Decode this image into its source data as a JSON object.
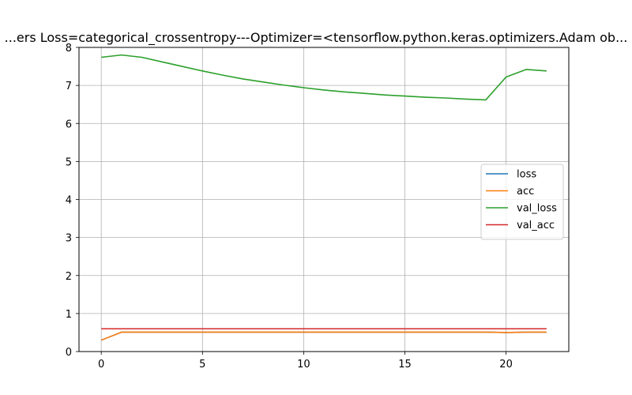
{
  "chart_data": {
    "type": "line",
    "title": "...ers  Loss=categorical_crossentropy---Optimizer=<tensorflow.python.keras.optimizers.Adam ob...",
    "xlabel": "",
    "ylabel": "",
    "xlim": [
      -1.1,
      23.1
    ],
    "ylim": [
      0,
      8
    ],
    "xticks": [
      0,
      5,
      10,
      15,
      20
    ],
    "yticks": [
      0,
      1,
      2,
      3,
      4,
      5,
      6,
      7,
      8
    ],
    "grid": true,
    "legend_position": "center-right",
    "x": [
      0,
      1,
      2,
      3,
      4,
      5,
      6,
      7,
      8,
      9,
      10,
      11,
      12,
      13,
      14,
      15,
      16,
      17,
      18,
      19,
      20,
      21,
      22
    ],
    "series": [
      {
        "name": "loss",
        "color": "#1f77b4",
        "values": [
          0.3,
          0.51,
          0.51,
          0.51,
          0.51,
          0.51,
          0.51,
          0.51,
          0.51,
          0.51,
          0.51,
          0.51,
          0.51,
          0.51,
          0.51,
          0.51,
          0.51,
          0.51,
          0.51,
          0.51,
          0.5,
          0.51,
          0.51
        ]
      },
      {
        "name": "acc",
        "color": "#ff7f0e",
        "values": [
          0.3,
          0.51,
          0.51,
          0.51,
          0.51,
          0.51,
          0.51,
          0.51,
          0.51,
          0.51,
          0.51,
          0.51,
          0.51,
          0.51,
          0.51,
          0.51,
          0.51,
          0.51,
          0.51,
          0.51,
          0.5,
          0.51,
          0.51
        ]
      },
      {
        "name": "val_loss",
        "color": "#2ca02c",
        "values": [
          7.74,
          7.8,
          7.74,
          7.62,
          7.5,
          7.38,
          7.27,
          7.17,
          7.09,
          7.01,
          6.94,
          6.88,
          6.83,
          6.79,
          6.75,
          6.72,
          6.69,
          6.67,
          6.64,
          6.62,
          7.22,
          7.42,
          7.38
        ]
      },
      {
        "name": "val_acc",
        "color": "#d62728",
        "values": [
          0.6,
          0.6,
          0.6,
          0.6,
          0.6,
          0.6,
          0.6,
          0.6,
          0.6,
          0.6,
          0.6,
          0.6,
          0.6,
          0.6,
          0.6,
          0.6,
          0.6,
          0.6,
          0.6,
          0.6,
          0.6,
          0.6,
          0.6
        ]
      }
    ]
  }
}
